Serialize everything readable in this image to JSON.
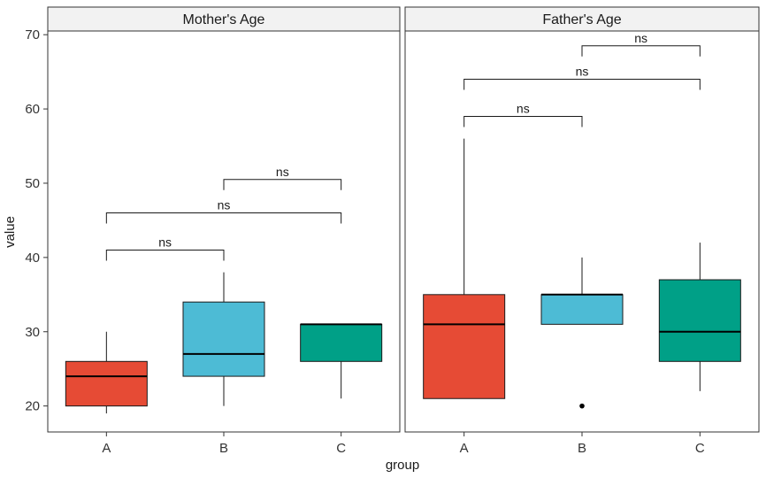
{
  "chart_data": {
    "type": "boxplot",
    "xlabel": "group",
    "ylabel": "value",
    "ylim": [
      16.5,
      70.5
    ],
    "yticks": [
      20,
      30,
      40,
      50,
      60,
      70
    ],
    "categories": [
      "A",
      "B",
      "C"
    ],
    "grid": false,
    "legend": "none",
    "colors": {
      "A": "#E64B35",
      "B": "#4DBBD5",
      "C": "#00A087"
    },
    "panels": [
      {
        "title": "Mother's Age",
        "boxes": [
          {
            "group": "A",
            "min": 19,
            "q1": 20,
            "median": 24,
            "q3": 26,
            "max": 30,
            "outliers": []
          },
          {
            "group": "B",
            "min": 20,
            "q1": 24,
            "median": 27,
            "q3": 34,
            "max": 38,
            "outliers": []
          },
          {
            "group": "C",
            "min": 21,
            "q1": 26,
            "median": 31,
            "q3": 31,
            "max": 31,
            "outliers": []
          }
        ],
        "comparisons": [
          {
            "from": "A",
            "to": "B",
            "y": 41,
            "label": "ns"
          },
          {
            "from": "A",
            "to": "C",
            "y": 46,
            "label": "ns"
          },
          {
            "from": "B",
            "to": "C",
            "y": 50.5,
            "label": "ns"
          }
        ]
      },
      {
        "title": "Father's Age",
        "boxes": [
          {
            "group": "A",
            "min": 21,
            "q1": 21,
            "median": 31,
            "q3": 35,
            "max": 56,
            "outliers": []
          },
          {
            "group": "B",
            "min": 31,
            "q1": 31,
            "median": 35,
            "q3": 35,
            "max": 40,
            "outliers": [
              20
            ]
          },
          {
            "group": "C",
            "min": 22,
            "q1": 26,
            "median": 30,
            "q3": 37,
            "max": 42,
            "outliers": []
          }
        ],
        "comparisons": [
          {
            "from": "A",
            "to": "B",
            "y": 59,
            "label": "ns"
          },
          {
            "from": "A",
            "to": "C",
            "y": 64,
            "label": "ns"
          },
          {
            "from": "B",
            "to": "C",
            "y": 68.5,
            "label": "ns"
          }
        ]
      }
    ]
  }
}
